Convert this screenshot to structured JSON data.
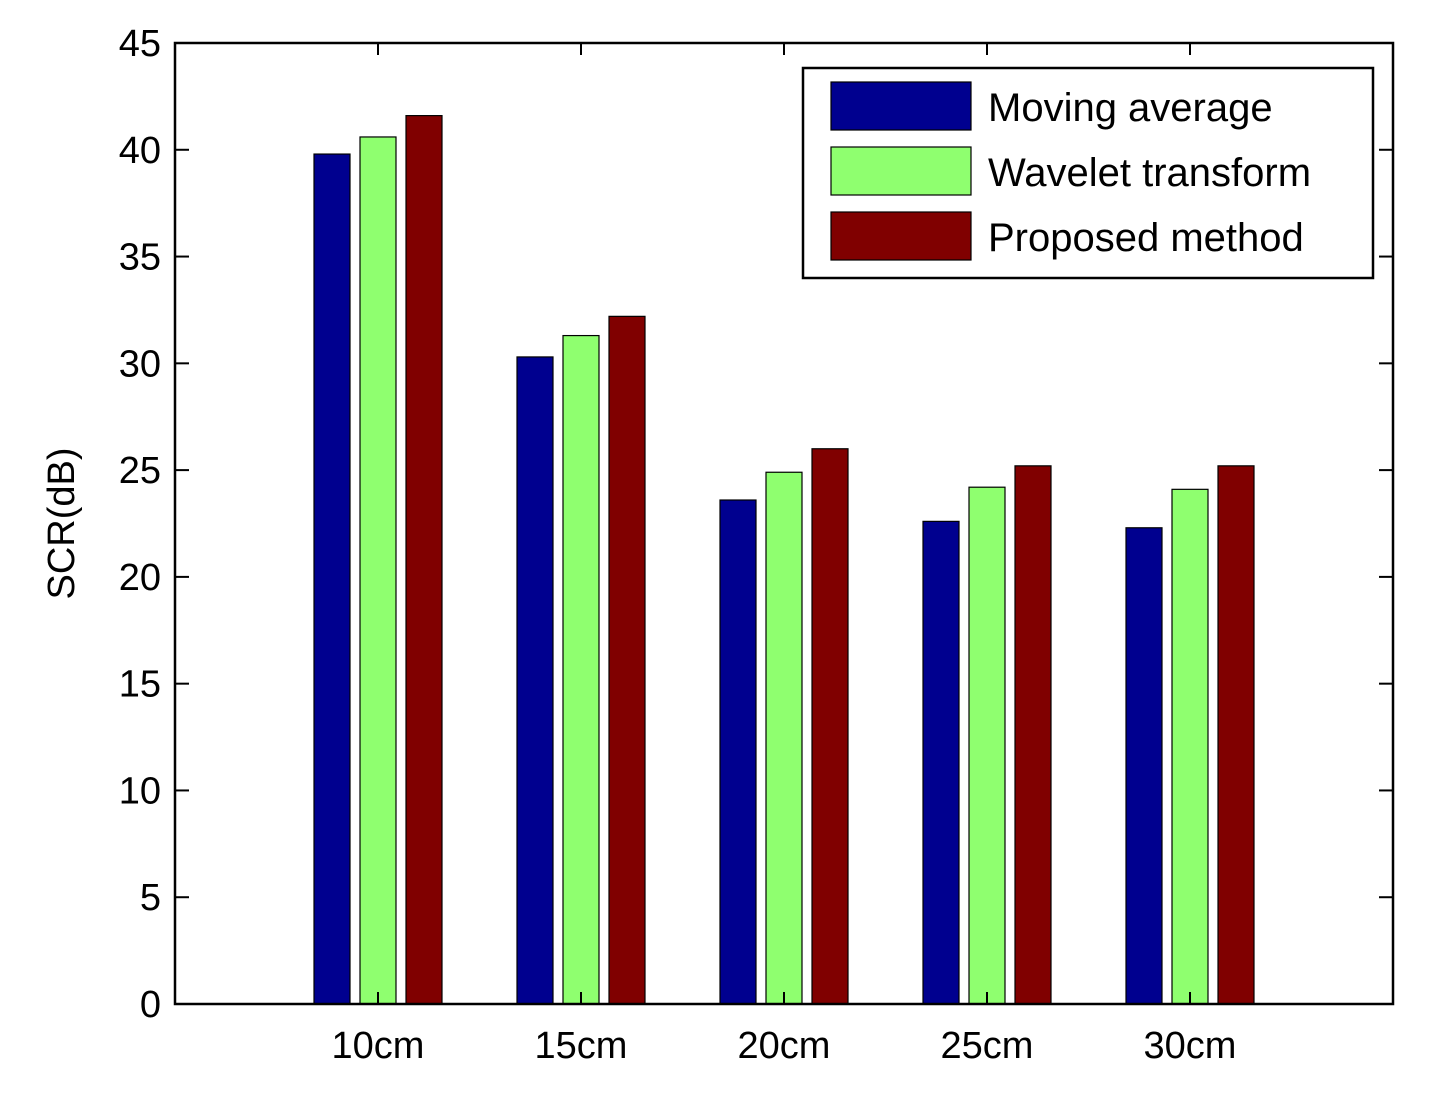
{
  "chart_data": {
    "type": "bar",
    "title": "",
    "xlabel": "",
    "ylabel": "SCR(dB)",
    "ylim": [
      0,
      45
    ],
    "yticks": [
      0,
      5,
      10,
      15,
      20,
      25,
      30,
      35,
      40,
      45
    ],
    "categories": [
      "10cm",
      "15cm",
      "20cm",
      "25cm",
      "30cm"
    ],
    "series": [
      {
        "name": "Moving average",
        "color": "#00008f",
        "values": [
          39.8,
          30.3,
          23.6,
          22.6,
          22.3
        ]
      },
      {
        "name": "Wavelet transform",
        "color": "#8fff6f",
        "values": [
          40.6,
          31.3,
          24.9,
          24.2,
          24.1
        ]
      },
      {
        "name": "Proposed method",
        "color": "#800000",
        "values": [
          41.6,
          32.2,
          26.0,
          25.2,
          25.2
        ]
      }
    ],
    "legend_position": "top-right",
    "grid": false
  }
}
